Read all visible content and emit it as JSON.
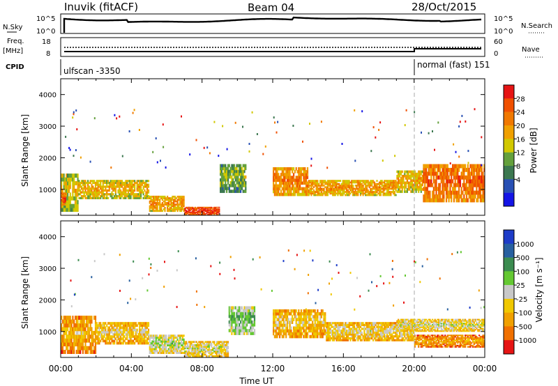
{
  "header": {
    "station": "Inuvik (fitACF)",
    "beam": "Beam 04",
    "date": "28/Oct/2015"
  },
  "left_labels": {
    "nsky": "N.Sky",
    "freq": "Freq.",
    "freq_unit": "[MHz]",
    "cpid": "CPID",
    "nsky_hi": "10^5",
    "nsky_lo": "10^0",
    "freq_hi": "18",
    "freq_lo": "8"
  },
  "right_labels": {
    "nsearch": "N.Search",
    "nave": "Nave",
    "nsearch_hi": "10^5",
    "nsearch_lo": "10^0",
    "nave_hi": "60",
    "nave_lo": "0"
  },
  "cpid_segments": [
    {
      "label": "ulfscan -3350"
    },
    {
      "label": "normal (fast) 151"
    }
  ],
  "axes": {
    "ylabel": "Slant Range [km]",
    "xlabel": "Time UT",
    "y_ticks": [
      "1000",
      "2000",
      "3000",
      "4000"
    ],
    "x_ticks": [
      "00:00",
      "04:00",
      "08:00",
      "12:00",
      "16:00",
      "20:00",
      "00:00"
    ]
  },
  "colorbars": {
    "power": {
      "label": "Power [dB]",
      "ticks": [
        "4",
        "8",
        "12",
        "16",
        "20",
        "24",
        "28"
      ],
      "colors": [
        "#1414e6",
        "#2850b4",
        "#3c7850",
        "#64a03c",
        "#d2c800",
        "#f0a000",
        "#f07800",
        "#f05000",
        "#e61414"
      ]
    },
    "velocity": {
      "label": "Velocity [m s⁻¹]",
      "ticks": [
        "1000",
        "500",
        "100",
        "25",
        "-25",
        "-100",
        "-500",
        "-1000"
      ],
      "colors": [
        "#1e3cc8",
        "#2860a0",
        "#3c8c50",
        "#64c832",
        "#c8c8c8",
        "#f0c800",
        "#f0a000",
        "#f07000",
        "#e61414"
      ]
    }
  },
  "chart_data": [
    {
      "type": "heatmap",
      "name": "power",
      "x": [
        "00:00",
        "04:00",
        "08:00",
        "12:00",
        "16:00",
        "20:00",
        "00:00"
      ],
      "y_range_km": [
        180,
        4500
      ],
      "ylabel": "Slant Range [km]",
      "colorbar_range_dB": [
        0,
        32
      ],
      "bands": [
        {
          "t_start": 0.0,
          "t_end": 1.0,
          "r_min": 300,
          "r_max": 1500,
          "value_dB": 18
        },
        {
          "t_start": 0.0,
          "t_end": 0.3,
          "r_min": 500,
          "r_max": 900,
          "value_dB": 28
        },
        {
          "t_start": 1.0,
          "t_end": 5.0,
          "r_min": 700,
          "r_max": 1300,
          "value_dB": 20
        },
        {
          "t_start": 5.0,
          "t_end": 7.0,
          "r_min": 300,
          "r_max": 800,
          "value_dB": 22
        },
        {
          "t_start": 7.0,
          "t_end": 9.0,
          "r_min": 200,
          "r_max": 450,
          "value_dB": 30
        },
        {
          "t_start": 9.0,
          "t_end": 10.5,
          "r_min": 900,
          "r_max": 1800,
          "value_dB": 14
        },
        {
          "t_start": 12.0,
          "t_end": 14.0,
          "r_min": 800,
          "r_max": 1700,
          "value_dB": 24
        },
        {
          "t_start": 14.0,
          "t_end": 19.0,
          "r_min": 800,
          "r_max": 1300,
          "value_dB": 22
        },
        {
          "t_start": 19.0,
          "t_end": 20.5,
          "r_min": 900,
          "r_max": 1600,
          "value_dB": 20
        },
        {
          "t_start": 20.5,
          "t_end": 24.0,
          "r_min": 600,
          "r_max": 1800,
          "value_dB": 26
        }
      ]
    },
    {
      "type": "heatmap",
      "name": "velocity",
      "x": [
        "00:00",
        "04:00",
        "08:00",
        "12:00",
        "16:00",
        "20:00",
        "00:00"
      ],
      "y_range_km": [
        180,
        4500
      ],
      "ylabel": "Slant Range [km]",
      "colorbar_range_ms": [
        -1000,
        1000
      ],
      "bands": [
        {
          "t_start": 0.0,
          "t_end": 2.0,
          "r_min": 300,
          "r_max": 1500,
          "value_ms": -300
        },
        {
          "t_start": 2.0,
          "t_end": 5.0,
          "r_min": 600,
          "r_max": 1300,
          "value_ms": -150
        },
        {
          "t_start": 5.0,
          "t_end": 7.0,
          "r_min": 300,
          "r_max": 900,
          "value_ms": 100
        },
        {
          "t_start": 7.0,
          "t_end": 9.5,
          "r_min": 200,
          "r_max": 700,
          "value_ms": 0
        },
        {
          "t_start": 9.5,
          "t_end": 11.0,
          "r_min": 900,
          "r_max": 1800,
          "value_ms": 300
        },
        {
          "t_start": 12.0,
          "t_end": 15.0,
          "r_min": 800,
          "r_max": 1700,
          "value_ms": -200
        },
        {
          "t_start": 15.0,
          "t_end": 20.0,
          "r_min": 700,
          "r_max": 1300,
          "value_ms": -100
        },
        {
          "t_start": 19.0,
          "t_end": 24.0,
          "r_min": 1000,
          "r_max": 1400,
          "value_ms": 0
        },
        {
          "t_start": 20.0,
          "t_end": 24.0,
          "r_min": 500,
          "r_max": 900,
          "value_ms": -400
        }
      ]
    }
  ]
}
